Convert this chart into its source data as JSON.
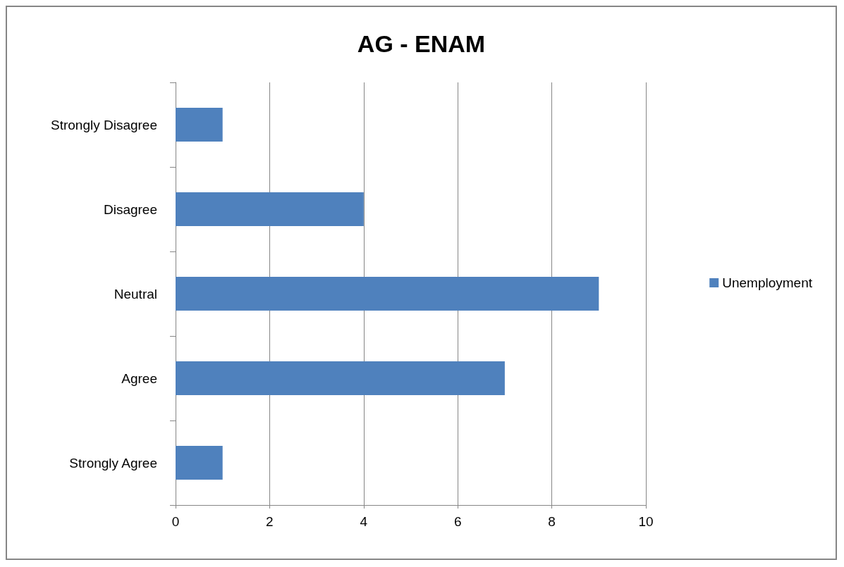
{
  "chart_data": {
    "type": "bar",
    "title": "AG - ENAM",
    "orientation": "horizontal",
    "categories": [
      "Strongly Disagree",
      "Disagree",
      "Neutral",
      "Agree",
      "Strongly Agree"
    ],
    "series": [
      {
        "name": "Unemployment",
        "color": "#4f81bd",
        "values": [
          1,
          4,
          9,
          7,
          1
        ]
      }
    ],
    "xlim": [
      0,
      10
    ],
    "xticks": [
      0,
      2,
      4,
      6,
      8,
      10
    ],
    "grid": "x",
    "legend": "right"
  }
}
